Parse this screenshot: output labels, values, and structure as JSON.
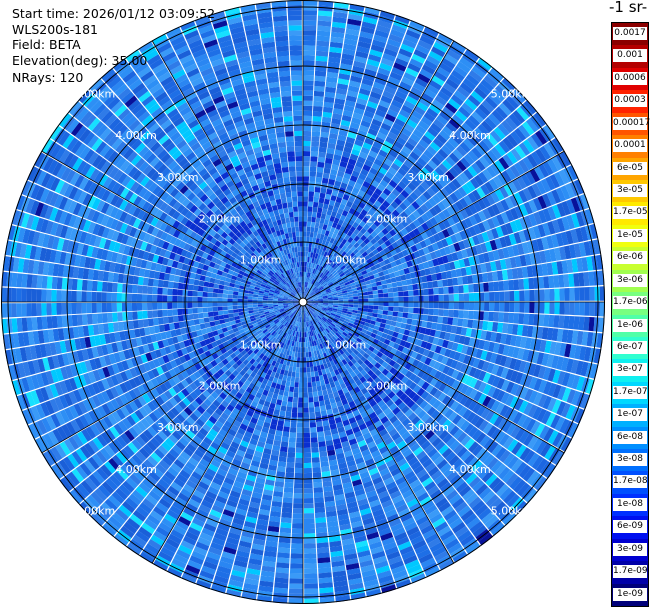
{
  "header": {
    "start_time": "Start time: 2026/01/12 03:09:52",
    "instrument": "WLS200s-181",
    "field": "Field: BETA",
    "elevation": "Elevation(deg): 35.00",
    "nrays": "NRays: 120"
  },
  "colorbar": {
    "title_fragment": "-1 sr-",
    "labels": [
      "0.0017",
      "0.001",
      "0.0006",
      "0.0003",
      "0.00017",
      "0.0001",
      "6e-05",
      "3e-05",
      "1.7e-05",
      "1e-05",
      "6e-06",
      "3e-06",
      "1.7e-06",
      "1e-06",
      "6e-07",
      "3e-07",
      "1.7e-07",
      "1e-07",
      "6e-08",
      "3e-08",
      "1.7e-08",
      "1e-08",
      "6e-09",
      "3e-09",
      "1.7e-09",
      "1e-09"
    ],
    "colors": [
      "#8b0000",
      "#b40000",
      "#e00000",
      "#ff2200",
      "#ff5500",
      "#ff8000",
      "#ffa500",
      "#ffc800",
      "#ffea00",
      "#f0ff10",
      "#c8ff30",
      "#a0ff50",
      "#78ff80",
      "#50ffa8",
      "#30ffd0",
      "#10f0f0",
      "#00d8ff",
      "#00b0ff",
      "#0090ff",
      "#0070ff",
      "#0050ff",
      "#0030ff",
      "#0010f0",
      "#0000d0",
      "#0000a8",
      "#00007a"
    ]
  },
  "map": {
    "range_ring_labels": [
      "1.00km",
      "2.00km",
      "3.00km",
      "4.00km",
      "5.00km"
    ],
    "ray_count": 120,
    "range_gates": 60,
    "palette": [
      "#1e6fe6",
      "#2a86f2",
      "#2f7be8",
      "#1a5fd8",
      "#3a9af7",
      "#2d8ff5",
      "#1c66e0"
    ],
    "highlight_colors": [
      "#00c8ff",
      "#16e0ff",
      "#0a2fd0",
      "#08129a"
    ]
  }
}
